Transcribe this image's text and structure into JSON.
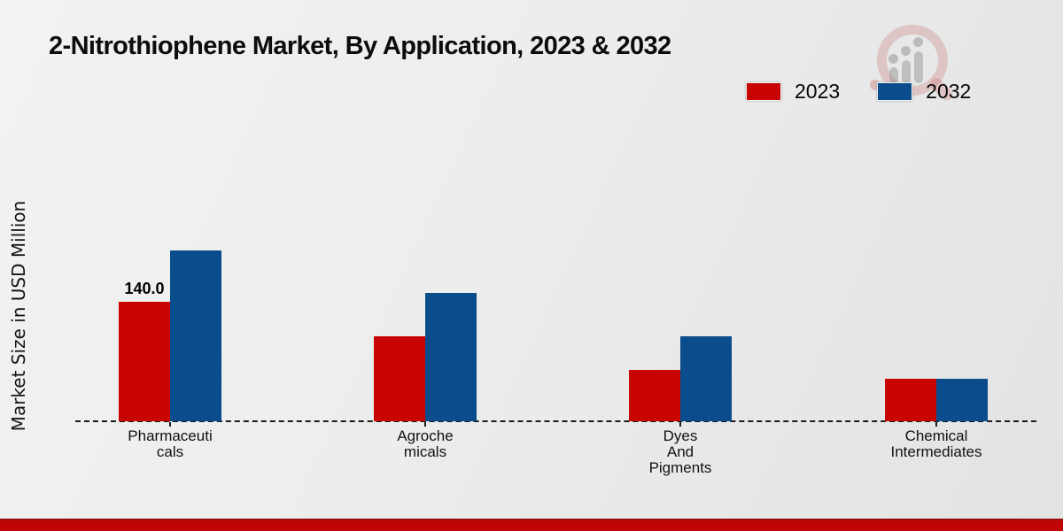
{
  "page": {
    "title": "2-Nitrothiophene Market, By Application, 2023 & 2032",
    "watermark_icon": "magnifier-bar-chart-logo-icon",
    "accent_bar_color": "#c00505"
  },
  "chart_data": {
    "type": "bar",
    "title": "2-Nitrothiophene Market, By Application, 2023 & 2032",
    "xlabel": "",
    "ylabel": "Market Size in USD Million",
    "ylim": [
      0,
      220
    ],
    "grid": false,
    "legend_position": "top-right",
    "axis_style": "dashed-baseline-only",
    "categories": [
      "Pharmaceuticals",
      "Agrochemicals",
      "Dyes And Pigments",
      "Chemical Intermediates"
    ],
    "category_label_lines": [
      [
        "Pharmaceuti",
        "cals"
      ],
      [
        "Agroche",
        "micals"
      ],
      [
        "Dyes",
        "And",
        "Pigments"
      ],
      [
        "Chemical",
        "Intermediates"
      ]
    ],
    "series": [
      {
        "name": "2023",
        "color": "#c90404",
        "values": [
          140,
          100,
          60,
          50
        ],
        "value_labels": [
          "140.0",
          "",
          "",
          ""
        ]
      },
      {
        "name": "2032",
        "color": "#0b4c8c",
        "values": [
          200,
          150,
          100,
          50
        ],
        "value_labels": [
          "",
          "",
          "",
          ""
        ]
      }
    ]
  }
}
